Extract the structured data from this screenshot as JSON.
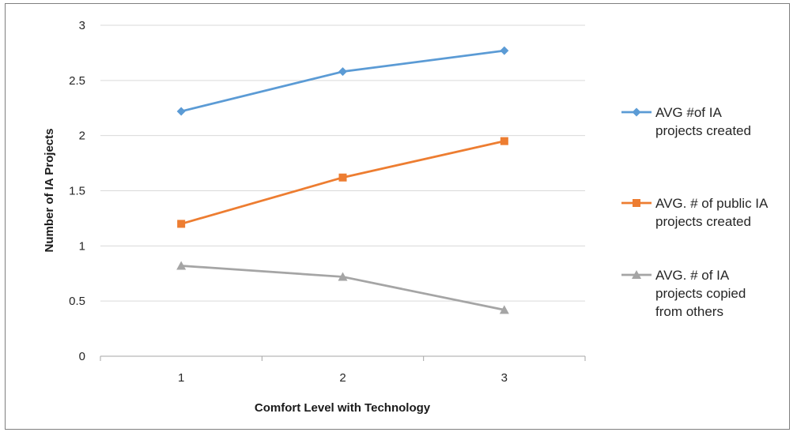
{
  "chart_data": {
    "type": "line",
    "title": "",
    "xlabel": "Comfort Level with Technology",
    "ylabel": "Number of IA Projects",
    "categories": [
      "1",
      "2",
      "3"
    ],
    "ylim": [
      0,
      3
    ],
    "yticks": [
      "0",
      "0.5",
      "1",
      "1.5",
      "2",
      "2.5",
      "3"
    ],
    "grid": true,
    "legend_position": "right",
    "series": [
      {
        "name": "AVG #of IA projects created",
        "legend_lines": [
          "AVG #of IA",
          "projects created"
        ],
        "values": [
          2.22,
          2.58,
          2.77
        ],
        "color": "#5b9bd5",
        "marker": "diamond"
      },
      {
        "name": "AVG. # of public IA projects created",
        "legend_lines": [
          "AVG. # of public IA",
          "projects created"
        ],
        "values": [
          1.2,
          1.62,
          1.95
        ],
        "color": "#ed7d31",
        "marker": "square"
      },
      {
        "name": "AVG. # of IA projects copied from others",
        "legend_lines": [
          "AVG. # of IA",
          "projects copied",
          "from others"
        ],
        "values": [
          0.82,
          0.72,
          0.42
        ],
        "color": "#a5a5a5",
        "marker": "triangle"
      }
    ]
  }
}
